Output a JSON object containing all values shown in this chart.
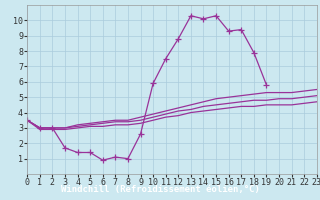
{
  "background_color": "#cce8f0",
  "grid_color": "#aaccdd",
  "line_color": "#993399",
  "marker": "+",
  "markersize": 4,
  "linewidth": 0.9,
  "xlabel": "Windchill (Refroidissement éolien,°C)",
  "xlabel_fontsize": 6.5,
  "tick_fontsize": 6,
  "xlim": [
    0,
    23
  ],
  "ylim": [
    0,
    11
  ],
  "xticks": [
    0,
    1,
    2,
    3,
    4,
    5,
    6,
    7,
    8,
    9,
    10,
    11,
    12,
    13,
    14,
    15,
    16,
    17,
    18,
    19,
    20,
    21,
    22,
    23
  ],
  "yticks": [
    1,
    2,
    3,
    4,
    5,
    6,
    7,
    8,
    9,
    10
  ],
  "series": [
    {
      "x": [
        0,
        1,
        2,
        3,
        4,
        5,
        6,
        7,
        8,
        9,
        10,
        11,
        12,
        13,
        14,
        15,
        16,
        17,
        18,
        19,
        20,
        21,
        22,
        23
      ],
      "y": [
        3.5,
        3.0,
        3.0,
        1.7,
        1.4,
        1.4,
        0.9,
        1.1,
        1.0,
        2.6,
        5.9,
        7.5,
        8.8,
        10.3,
        10.1,
        10.3,
        9.3,
        9.4,
        7.9,
        5.8,
        null,
        null,
        null,
        null
      ],
      "with_markers": true
    },
    {
      "x": [
        0,
        1,
        2,
        3,
        4,
        5,
        6,
        7,
        8,
        9,
        10,
        11,
        12,
        13,
        14,
        15,
        16,
        17,
        18,
        19,
        20,
        21,
        22,
        23
      ],
      "y": [
        3.5,
        3.0,
        3.0,
        3.0,
        3.2,
        3.3,
        3.4,
        3.5,
        3.5,
        3.7,
        3.9,
        4.1,
        4.3,
        4.5,
        4.7,
        4.9,
        5.0,
        5.1,
        5.2,
        5.3,
        5.3,
        5.3,
        5.4,
        5.5
      ],
      "with_markers": false
    },
    {
      "x": [
        0,
        1,
        2,
        3,
        4,
        5,
        6,
        7,
        8,
        9,
        10,
        11,
        12,
        13,
        14,
        15,
        16,
        17,
        18,
        19,
        20,
        21,
        22,
        23
      ],
      "y": [
        3.5,
        2.9,
        2.9,
        2.9,
        3.0,
        3.1,
        3.1,
        3.2,
        3.2,
        3.3,
        3.5,
        3.7,
        3.8,
        4.0,
        4.1,
        4.2,
        4.3,
        4.4,
        4.4,
        4.5,
        4.5,
        4.5,
        4.6,
        4.7
      ],
      "with_markers": false
    },
    {
      "x": [
        0,
        1,
        2,
        3,
        4,
        5,
        6,
        7,
        8,
        9,
        10,
        11,
        12,
        13,
        14,
        15,
        16,
        17,
        18,
        19,
        20,
        21,
        22,
        23
      ],
      "y": [
        3.5,
        3.0,
        3.0,
        3.0,
        3.1,
        3.2,
        3.3,
        3.4,
        3.4,
        3.5,
        3.7,
        3.9,
        4.1,
        4.2,
        4.4,
        4.5,
        4.6,
        4.7,
        4.8,
        4.8,
        4.9,
        4.9,
        5.0,
        5.1
      ],
      "with_markers": false
    }
  ],
  "xlabel_bg": "#7722aa",
  "xlabel_fg": "#ffffff"
}
